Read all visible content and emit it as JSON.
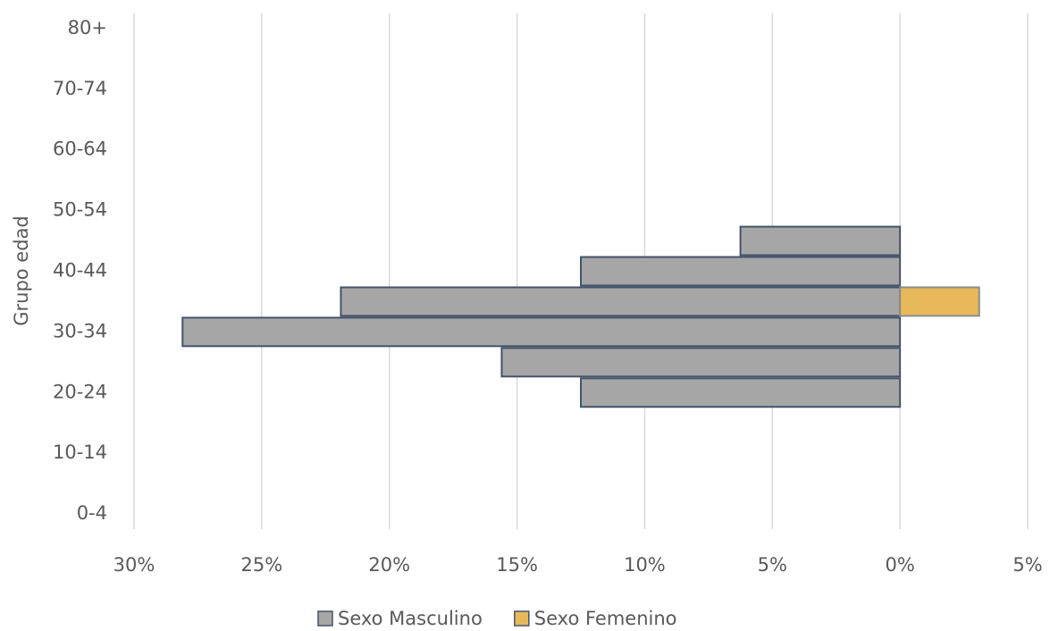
{
  "chart_data": {
    "type": "bar",
    "orientation": "horizontal",
    "stacked": false,
    "y_label": "Grupo edad",
    "categories": [
      "0-4",
      null,
      "10-14",
      null,
      "20-24",
      null,
      "30-34",
      null,
      "40-44",
      null,
      "50-54",
      null,
      "60-64",
      null,
      "70-74",
      null,
      "80+"
    ],
    "series": [
      {
        "name": "Sexo Masculino",
        "color": "#a6a6a6",
        "values": [
          0,
          0,
          0,
          0,
          -12.5,
          -15.6,
          -28.1,
          -21.9,
          -12.5,
          -6.25,
          0,
          0,
          0,
          0,
          0,
          0,
          0
        ]
      },
      {
        "name": "Sexo Femenino",
        "color": "#e8b95a",
        "values": [
          0,
          0,
          0,
          0,
          0,
          0,
          0,
          3.1,
          0,
          0,
          0,
          0,
          0,
          0,
          0,
          0,
          0
        ]
      }
    ],
    "xlim": [
      -30,
      5
    ],
    "xticks": [
      {
        "value": -30,
        "label": "30%"
      },
      {
        "value": -25,
        "label": "25%"
      },
      {
        "value": -20,
        "label": "20%"
      },
      {
        "value": -15,
        "label": "15%"
      },
      {
        "value": -10,
        "label": "10%"
      },
      {
        "value": -5,
        "label": "5%"
      },
      {
        "value": 0,
        "label": "0%"
      },
      {
        "value": 5,
        "label": "5%"
      }
    ],
    "grid": true,
    "legend": "bottom"
  }
}
